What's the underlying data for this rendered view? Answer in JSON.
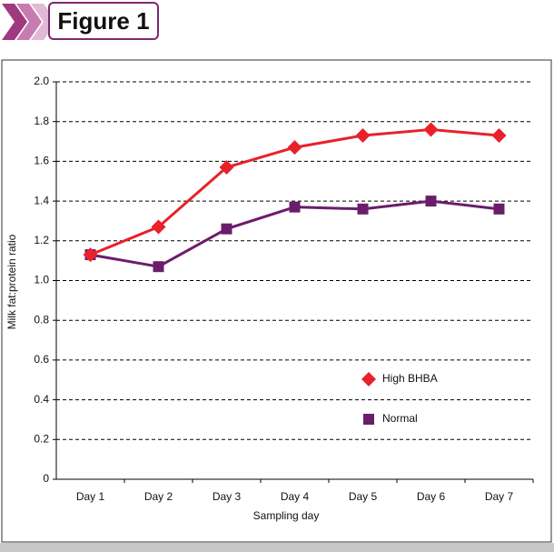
{
  "figure_label": "Figure 1",
  "chart_data": {
    "type": "line",
    "x_label": "Sampling day",
    "y_label": "Milk fat:protein ratio",
    "categories": [
      "Day 1",
      "Day 2",
      "Day 3",
      "Day 4",
      "Day 5",
      "Day 6",
      "Day 7"
    ],
    "series": [
      {
        "name": "High BHBA",
        "color": "#e8212b",
        "marker": "diamond",
        "values": [
          1.13,
          1.27,
          1.57,
          1.67,
          1.73,
          1.76,
          1.73
        ]
      },
      {
        "name": "Normal",
        "color": "#6b1d6b",
        "marker": "square",
        "values": [
          1.13,
          1.07,
          1.26,
          1.37,
          1.36,
          1.4,
          1.36
        ]
      }
    ],
    "ylim": [
      0,
      2
    ],
    "yticks": [
      0,
      {
        "value": 0.2,
        "label": "0.2"
      },
      {
        "value": 0.4,
        "label": "0.4"
      },
      {
        "value": 0.6,
        "label": "0.6"
      },
      {
        "value": 0.8,
        "label": "0.8"
      },
      {
        "value": 1,
        "label": "1.0"
      },
      {
        "value": 1.2,
        "label": "1.2"
      },
      {
        "value": 1.4,
        "label": "1.4"
      },
      {
        "value": 1.6,
        "label": "1.6"
      },
      {
        "value": 1.8,
        "label": "1.8"
      },
      {
        "value": 2,
        "label": "2.0"
      }
    ],
    "grid": true
  }
}
